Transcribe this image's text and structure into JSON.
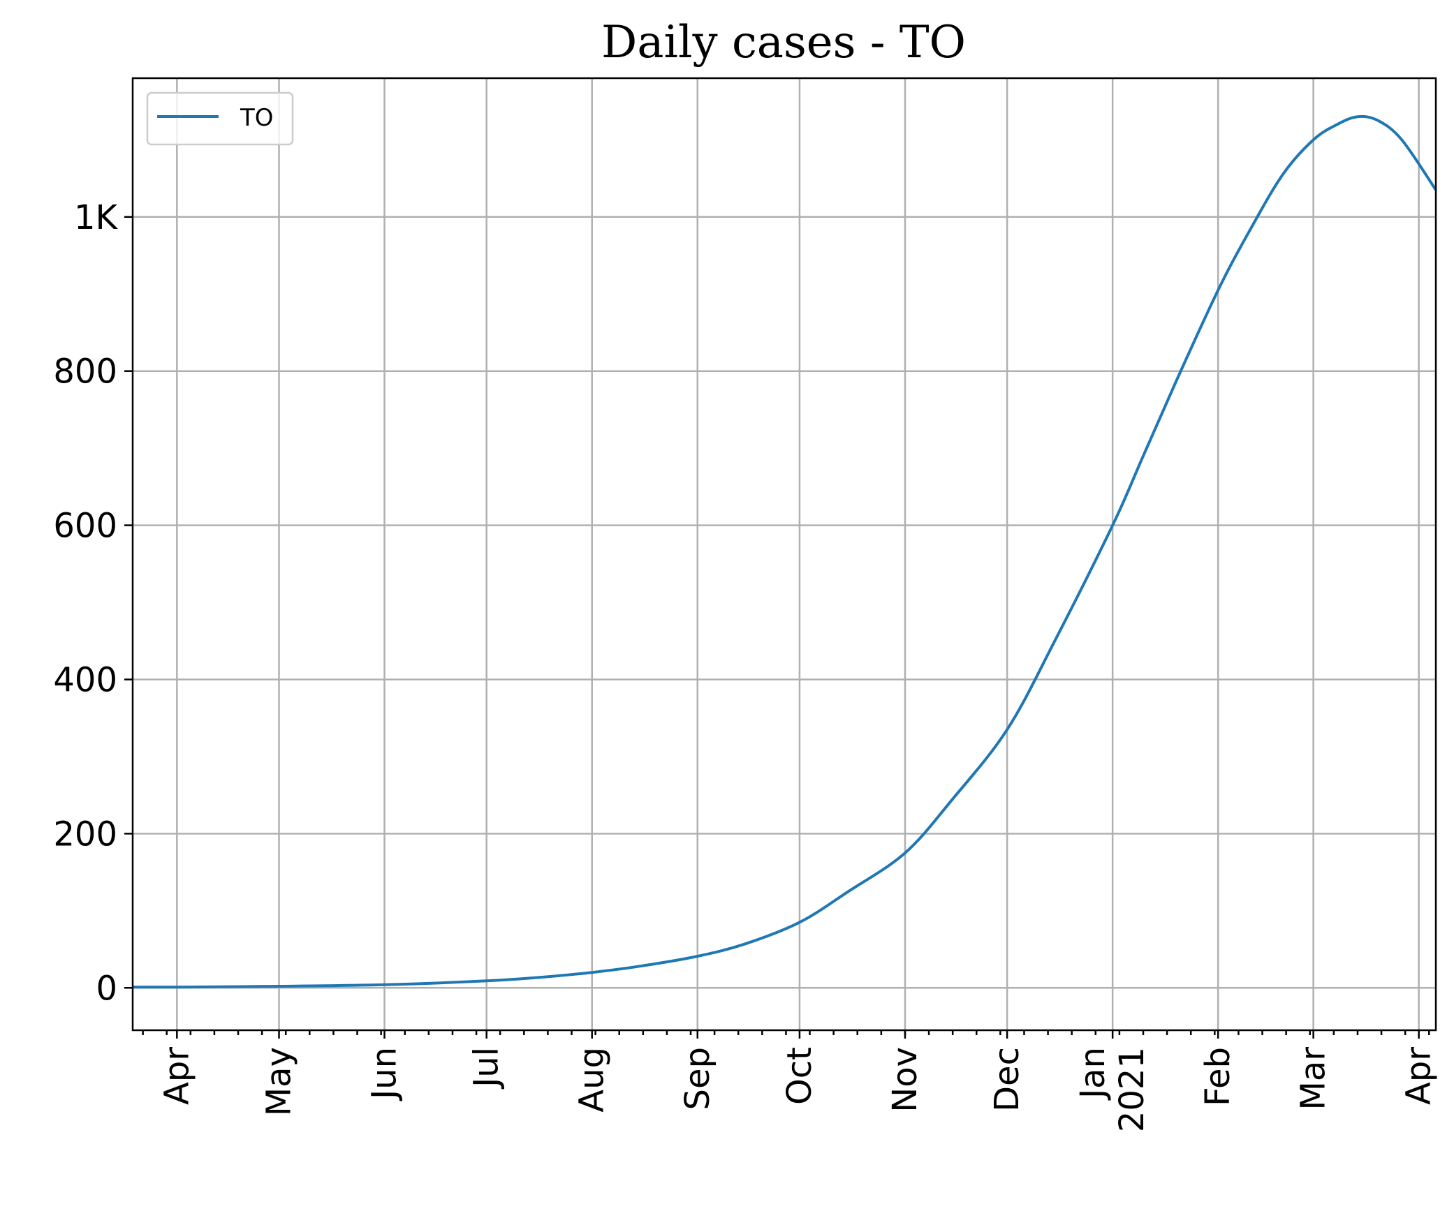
{
  "chart_data": {
    "type": "line",
    "title": "Daily cases - TO",
    "xlabel": "",
    "ylabel": "",
    "x_axis": {
      "type": "date",
      "range": [
        "2020-03-19",
        "2021-04-06"
      ],
      "ticks": [
        {
          "date": "2020-04-01",
          "label": "Apr"
        },
        {
          "date": "2020-05-01",
          "label": "May"
        },
        {
          "date": "2020-06-01",
          "label": "Jun"
        },
        {
          "date": "2020-07-01",
          "label": "Jul"
        },
        {
          "date": "2020-08-01",
          "label": "Aug"
        },
        {
          "date": "2020-09-01",
          "label": "Sep"
        },
        {
          "date": "2020-10-01",
          "label": "Oct"
        },
        {
          "date": "2020-11-01",
          "label": "Nov"
        },
        {
          "date": "2020-12-01",
          "label": "Dec"
        },
        {
          "date": "2021-01-01",
          "label": "Jan",
          "label2": "2021"
        },
        {
          "date": "2021-02-01",
          "label": "Feb"
        },
        {
          "date": "2021-03-01",
          "label": "Mar"
        },
        {
          "date": "2021-04-01",
          "label": "Apr"
        }
      ],
      "minor_ticks": "weekly"
    },
    "y_axis": {
      "range": [
        -55,
        1180
      ],
      "ticks": [
        {
          "value": 0,
          "label": "0"
        },
        {
          "value": 200,
          "label": "200"
        },
        {
          "value": 400,
          "label": "400"
        },
        {
          "value": 600,
          "label": "600"
        },
        {
          "value": 800,
          "label": "800"
        },
        {
          "value": 1000,
          "label": "1K"
        }
      ]
    },
    "grid": true,
    "legend": {
      "placement": "top-left"
    },
    "series": [
      {
        "name": "TO",
        "color": "#1f77b4",
        "points": [
          [
            "2020-03-19",
            1
          ],
          [
            "2020-04-01",
            1
          ],
          [
            "2020-05-01",
            2
          ],
          [
            "2020-06-01",
            4
          ],
          [
            "2020-07-01",
            9
          ],
          [
            "2020-07-15",
            13
          ],
          [
            "2020-08-01",
            20
          ],
          [
            "2020-08-15",
            28
          ],
          [
            "2020-09-01",
            41
          ],
          [
            "2020-09-15",
            57
          ],
          [
            "2020-10-01",
            85
          ],
          [
            "2020-10-15",
            124
          ],
          [
            "2020-11-01",
            175
          ],
          [
            "2020-11-15",
            245
          ],
          [
            "2020-12-01",
            335
          ],
          [
            "2020-12-15",
            450
          ],
          [
            "2021-01-01",
            600
          ],
          [
            "2021-01-10",
            690
          ],
          [
            "2021-01-20",
            790
          ],
          [
            "2021-02-01",
            905
          ],
          [
            "2021-02-10",
            980
          ],
          [
            "2021-02-20",
            1055
          ],
          [
            "2021-03-01",
            1100
          ],
          [
            "2021-03-08",
            1120
          ],
          [
            "2021-03-14",
            1130
          ],
          [
            "2021-03-20",
            1125
          ],
          [
            "2021-03-27",
            1100
          ],
          [
            "2021-04-06",
            1035
          ]
        ]
      }
    ]
  }
}
